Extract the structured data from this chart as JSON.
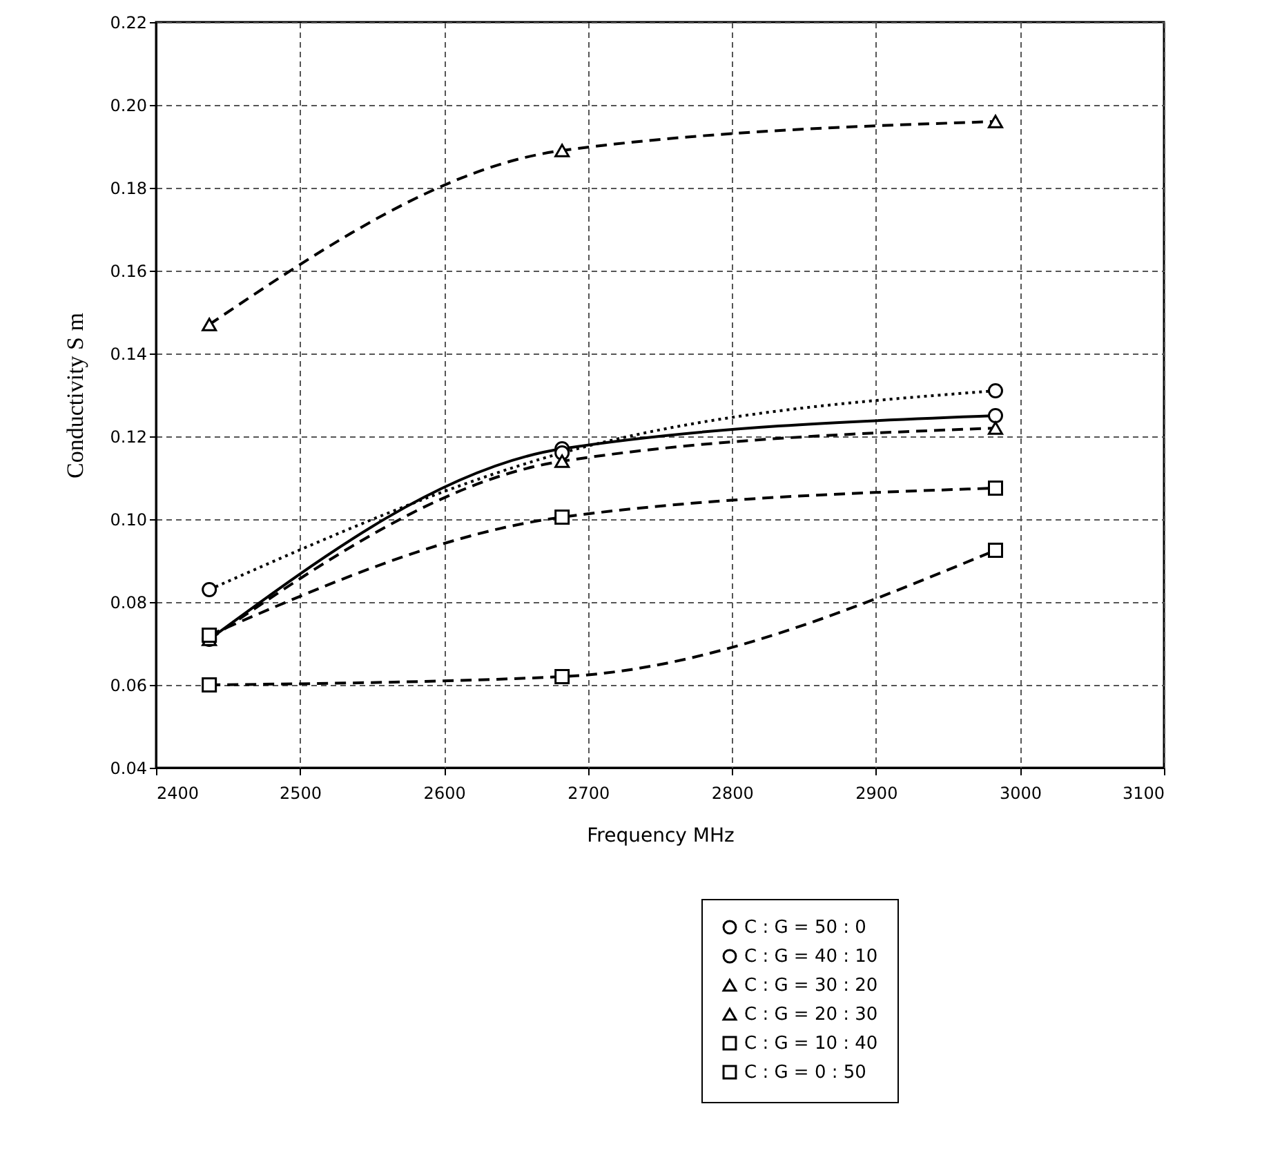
{
  "chart_data": {
    "type": "line",
    "xlabel": "Frequency MHz",
    "ylabel": "Conductivity S m",
    "x": [
      2437,
      2682,
      2983
    ],
    "xlim": [
      2400,
      3100
    ],
    "xticks": [
      2400,
      2500,
      2600,
      2700,
      2800,
      2900,
      3000,
      3100
    ],
    "ylim": [
      0.04,
      0.22
    ],
    "yticks": [
      0.04,
      0.06,
      0.08,
      {
        "value": 0.1,
        "label": "0.10"
      },
      0.12,
      0.14,
      0.16,
      0.18,
      {
        "value": 0.2,
        "label": "0.20"
      },
      0.22
    ],
    "grid": true,
    "legend": "bottom right",
    "series": [
      {
        "name": "C : G = 50 : 0",
        "color": "#000000",
        "values": [
          0.071,
          0.117,
          0.125
        ],
        "marker": "circle",
        "line_style": "solid"
      },
      {
        "name": "C : G = 40 : 10",
        "color": "#000000",
        "values": [
          0.083,
          0.116,
          0.131
        ],
        "marker": "circle",
        "line_style": "dotted"
      },
      {
        "name": "C : G = 30 : 20",
        "color": "#000000",
        "values": [
          0.071,
          0.114,
          0.122
        ],
        "marker": "triangle",
        "line_style": "dashed"
      },
      {
        "name": "C : G = 20 : 30",
        "color": "#000000",
        "values": [
          0.147,
          0.189,
          0.196
        ],
        "marker": "triangle",
        "line_style": "dashed"
      },
      {
        "name": "C : G = 10 : 40",
        "color": "#000000",
        "values": [
          0.072,
          0.1005,
          0.1075
        ],
        "marker": "square",
        "line_style": "dashed"
      },
      {
        "name": "C : G = 0 : 50",
        "color": "#000000",
        "values": [
          0.06,
          0.062,
          0.0925
        ],
        "marker": "square",
        "line_style": "dashed"
      }
    ]
  }
}
